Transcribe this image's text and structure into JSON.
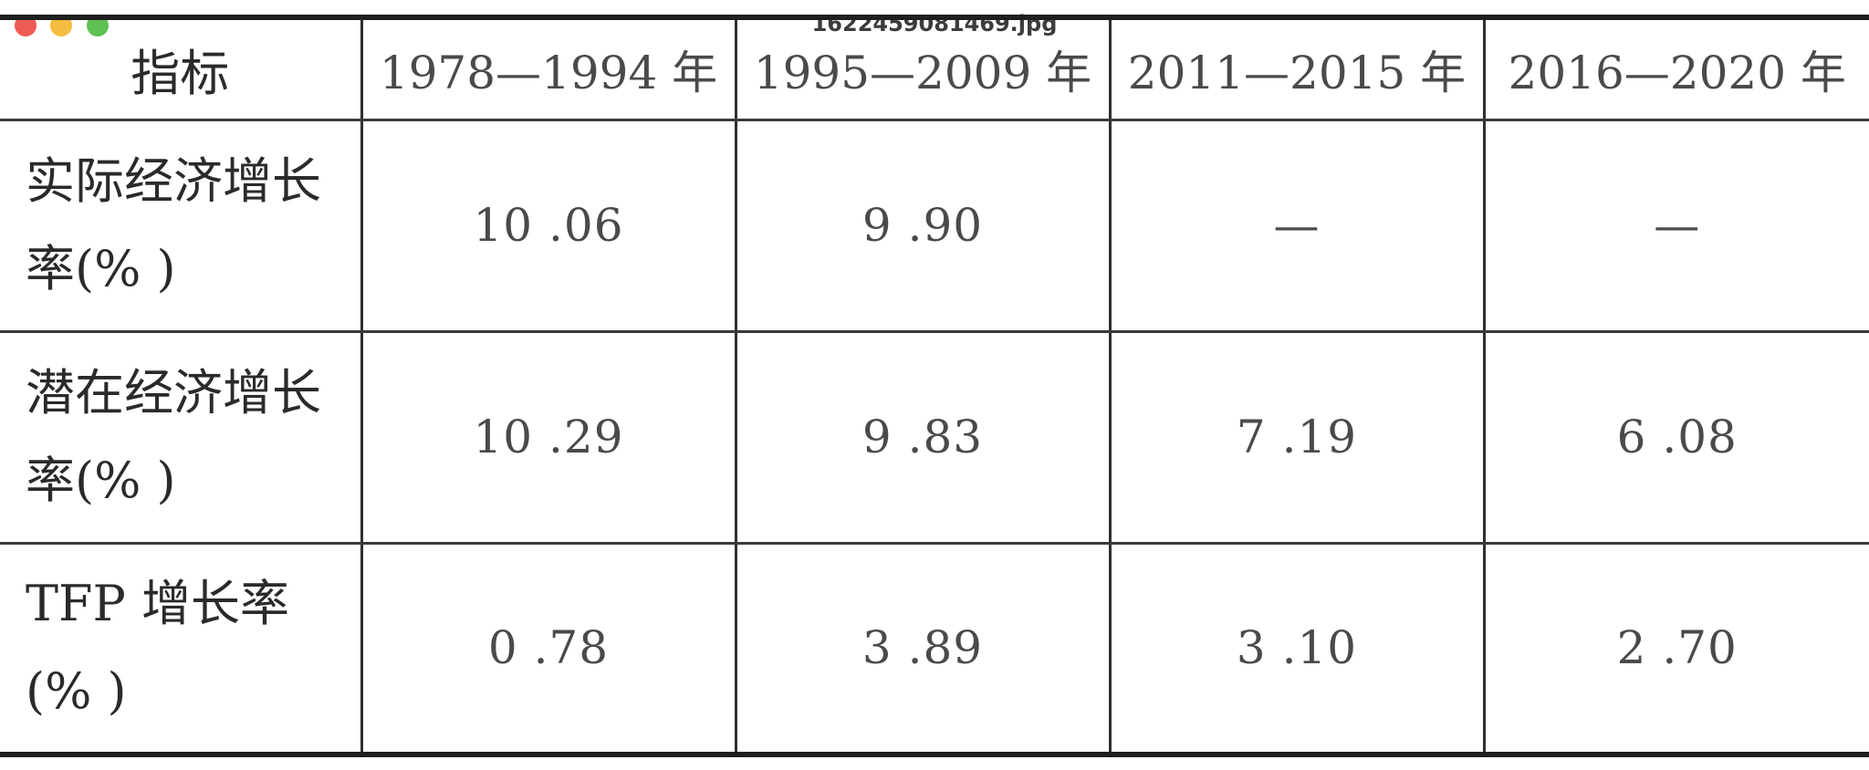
{
  "window": {
    "filename": "1622459081469.jpg"
  },
  "table": {
    "headers": [
      "指标",
      "1978—1994 年",
      "1995—2009 年",
      "2011—2015 年",
      "2016—2020 年"
    ],
    "rows": [
      {
        "label": "实际经济增长率(% )",
        "values": [
          "10 .06",
          "9 .90",
          "—",
          "—"
        ]
      },
      {
        "label": "潜在经济增长率(% )",
        "values": [
          "10 .29",
          "9 .83",
          "7 .19",
          "6 .08"
        ]
      },
      {
        "label": "TFP 增长率(% )",
        "values": [
          "0 .78",
          "3 .89",
          "3 .10",
          "2 .70"
        ]
      }
    ]
  }
}
